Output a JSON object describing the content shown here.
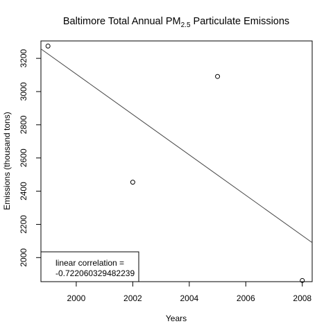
{
  "chart_data": {
    "type": "scatter",
    "title": {
      "prefix": "Baltimore Total Annual PM",
      "subscript": "2.5",
      "suffix": " Particulate Emissions"
    },
    "xlabel": "Years",
    "ylabel": "Emissions (thousand tons)",
    "xlim": [
      1998.75,
      2008.35
    ],
    "ylim": [
      1855,
      3305
    ],
    "xticks": [
      2000,
      2002,
      2004,
      2006,
      2008
    ],
    "yticks": [
      2000,
      2200,
      2400,
      2600,
      2800,
      3000,
      3200
    ],
    "points": [
      {
        "x": 1999,
        "y": 3274
      },
      {
        "x": 2002,
        "y": 2454
      },
      {
        "x": 2005,
        "y": 3091
      },
      {
        "x": 2008,
        "y": 1862
      }
    ],
    "regression_line": {
      "x": [
        1998.75,
        2008.35
      ],
      "y": [
        3257,
        2090
      ]
    },
    "legend": {
      "position": "bottom-left",
      "lines": [
        "linear correlation =",
        "-0.722060329482239"
      ]
    }
  }
}
